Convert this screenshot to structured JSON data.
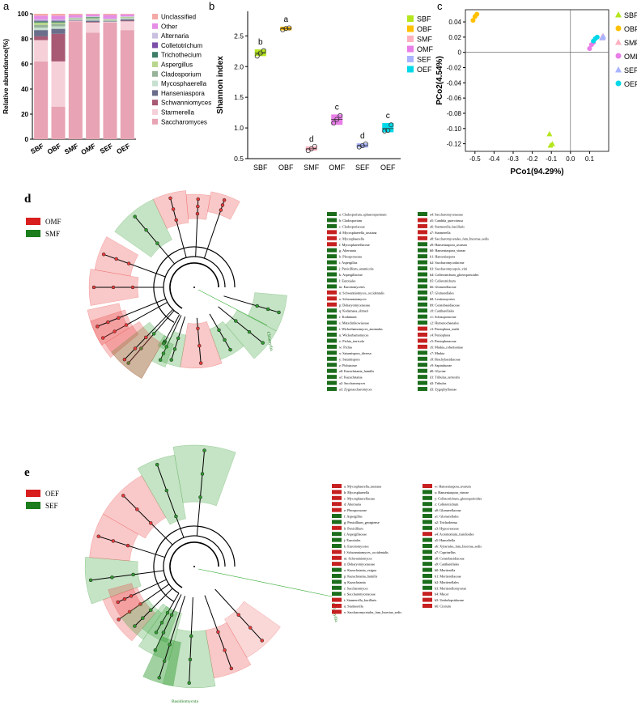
{
  "panels": {
    "a": "a",
    "b": "b",
    "c": "c",
    "d": "d",
    "e": "e"
  },
  "chart_data": [
    {
      "type": "bar",
      "panel": "a",
      "stacked": true,
      "ylabel": "Relative abundance(%)",
      "ylim": [
        0,
        100
      ],
      "yticks": [
        0,
        20,
        40,
        60,
        80,
        100
      ],
      "categories": [
        "SBF",
        "OBF",
        "SMF",
        "OMF",
        "SEF",
        "OEF"
      ],
      "legend_position": "right",
      "series": [
        {
          "name": "Saccharomyces",
          "color": "#e8a4b4",
          "values": [
            62,
            26,
            94,
            85,
            93,
            87
          ]
        },
        {
          "name": "Starmerella",
          "color": "#f6d0d9",
          "values": [
            17,
            36,
            0.5,
            8,
            0.5,
            7
          ]
        },
        {
          "name": "Schwanniomyces",
          "color": "#a85a74",
          "values": [
            3,
            22,
            0,
            0.5,
            0,
            0.5
          ]
        },
        {
          "name": "Hanseniaspora",
          "color": "#6b6e8b",
          "values": [
            5,
            4,
            0.5,
            1,
            0.5,
            1
          ]
        },
        {
          "name": "Mycosphaerella",
          "color": "#c8e0cf",
          "values": [
            2,
            2,
            0.5,
            1,
            0.5,
            1
          ]
        },
        {
          "name": "Cladosporium",
          "color": "#97b399",
          "values": [
            2,
            2,
            0.5,
            1,
            0.5,
            0.5
          ]
        },
        {
          "name": "Aspergillus",
          "color": "#b9d68e",
          "values": [
            2,
            1,
            0.5,
            0.5,
            0.5,
            0.5
          ]
        },
        {
          "name": "Trichothecium",
          "color": "#3e7e67",
          "values": [
            1,
            1,
            0,
            0.5,
            0,
            0
          ]
        },
        {
          "name": "Colletotrichum",
          "color": "#7b4fa7",
          "values": [
            0.5,
            0.5,
            0,
            0,
            0,
            0
          ]
        },
        {
          "name": "Alternaria",
          "color": "#c9c0e0",
          "values": [
            1,
            1,
            0.5,
            0.5,
            0.5,
            0.5
          ]
        },
        {
          "name": "Other",
          "color": "#e58ee6",
          "values": [
            3,
            3,
            2,
            1.5,
            3,
            1.5
          ]
        },
        {
          "name": "Unclassified",
          "color": "#f4aaa6",
          "values": [
            1.5,
            1.5,
            1,
            0.5,
            1,
            0.5
          ]
        }
      ]
    },
    {
      "type": "bar",
      "panel": "b",
      "ylabel": "Shannon index",
      "ylim": [
        0.5,
        2.9
      ],
      "yticks": [
        0.5,
        1.0,
        1.5,
        2.0,
        2.5
      ],
      "categories": [
        "SBF",
        "OBF",
        "SMF",
        "OMF",
        "SEF",
        "OEF"
      ],
      "legend_position": "right",
      "series": [
        {
          "name": "SBF",
          "color": "#b5e61d"
        },
        {
          "name": "OBF",
          "color": "#ffc000"
        },
        {
          "name": "SMF",
          "color": "#ffb0c0"
        },
        {
          "name": "OMF",
          "color": "#e87ee8"
        },
        {
          "name": "SEF",
          "color": "#a8b4ff"
        },
        {
          "name": "OEF",
          "color": "#00d8e8"
        }
      ],
      "groups": [
        {
          "label": "SBF",
          "letter": "b",
          "mean": 2.22,
          "low": 2.17,
          "high": 2.28,
          "points": [
            2.17,
            2.22,
            2.26
          ]
        },
        {
          "label": "OBF",
          "letter": "a",
          "mean": 2.62,
          "low": 2.59,
          "high": 2.65,
          "points": [
            2.6,
            2.62,
            2.63
          ]
        },
        {
          "label": "SMF",
          "letter": "d",
          "mean": 0.66,
          "low": 0.63,
          "high": 0.7,
          "points": [
            0.63,
            0.66,
            0.7
          ]
        },
        {
          "label": "OMF",
          "letter": "c",
          "mean": 1.14,
          "low": 1.05,
          "high": 1.22,
          "points": [
            1.08,
            1.14,
            1.2
          ]
        },
        {
          "label": "SEF",
          "letter": "d",
          "mean": 0.71,
          "low": 0.68,
          "high": 0.75,
          "points": [
            0.69,
            0.71,
            0.74
          ]
        },
        {
          "label": "OEF",
          "letter": "c",
          "mean": 0.99,
          "low": 0.93,
          "high": 1.08,
          "points": [
            0.95,
            0.96,
            1.05
          ]
        }
      ]
    },
    {
      "type": "scatter",
      "panel": "c",
      "xlabel": "PCo1(94.29%)",
      "ylabel": "PCo2(4.54%)",
      "xlim": [
        -0.55,
        0.2
      ],
      "ylim": [
        -0.13,
        0.056
      ],
      "xticks": [
        -0.5,
        -0.4,
        -0.3,
        -0.2,
        -0.1,
        0.0,
        0.1
      ],
      "yticks": [
        -0.12,
        -0.1,
        -0.08,
        -0.06,
        -0.04,
        -0.02,
        0,
        0.02,
        0.04
      ],
      "legend_position": "right",
      "series": [
        {
          "name": "SBF",
          "color": "#b5e61d",
          "marker": "triangle",
          "x": [
            -0.11,
            -0.095,
            -0.105
          ],
          "y": [
            -0.107,
            -0.12,
            -0.122
          ]
        },
        {
          "name": "OBF",
          "color": "#ffc000",
          "marker": "circle",
          "x": [
            -0.51,
            -0.49,
            -0.5
          ],
          "y": [
            0.042,
            0.05,
            0.047
          ]
        },
        {
          "name": "SMF",
          "color": "#ffb0c0",
          "marker": "triangle",
          "x": [
            0.17,
            0.165,
            0.168
          ],
          "y": [
            0.022,
            0.02,
            0.019
          ]
        },
        {
          "name": "OMF",
          "color": "#e87ee8",
          "marker": "circle",
          "x": [
            0.1,
            0.11,
            0.12
          ],
          "y": [
            0.005,
            0.01,
            0.013
          ]
        },
        {
          "name": "SEF",
          "color": "#a8b4ff",
          "marker": "triangle",
          "x": [
            0.165,
            0.17,
            0.172
          ],
          "y": [
            0.019,
            0.02,
            0.021
          ]
        },
        {
          "name": "OEF",
          "color": "#00d8e8",
          "marker": "circle",
          "x": [
            0.12,
            0.13,
            0.14
          ],
          "y": [
            0.015,
            0.018,
            0.02
          ]
        }
      ]
    }
  ],
  "cladogram_d": {
    "legend": [
      {
        "name": "OMF",
        "color": "#d91e1e"
      },
      {
        "name": "SMF",
        "color": "#1b7d1b"
      }
    ],
    "center_label": "Chlamydia",
    "key_col1": [
      {
        "c": "g",
        "t": "a: Cladosporium_sphaerospermum"
      },
      {
        "c": "g",
        "t": "b: Cladosporium"
      },
      {
        "c": "g",
        "t": "c: Cladosporiaceae"
      },
      {
        "c": "r",
        "t": "d: Mycosphaerella_tassiana"
      },
      {
        "c": "r",
        "t": "e: Mycosphaerella"
      },
      {
        "c": "r",
        "t": "f: Mycosphaerellaceae"
      },
      {
        "c": "g",
        "t": "g: Alternaria"
      },
      {
        "c": "g",
        "t": "h: Pleosporaceae"
      },
      {
        "c": "g",
        "t": "i: Aspergillus"
      },
      {
        "c": "g",
        "t": "j: Penicillium_atramicola"
      },
      {
        "c": "g",
        "t": "k: Aspergillaceae"
      },
      {
        "c": "g",
        "t": "l: Eurotiales"
      },
      {
        "c": "g",
        "t": "m: Eurotiomycetes"
      },
      {
        "c": "r",
        "t": "n: Schwanniomyces_occidentalis"
      },
      {
        "c": "r",
        "t": "o: Schwanniomyces"
      },
      {
        "c": "r",
        "t": "p: Debaryomycetaceae"
      },
      {
        "c": "g",
        "t": "q: Kodamaea_ohmeri"
      },
      {
        "c": "g",
        "t": "r: Kodamaea"
      },
      {
        "c": "g",
        "t": "s: Metschnikowiaceae"
      },
      {
        "c": "g",
        "t": "t: Wickerhamomyces_anomalus"
      },
      {
        "c": "g",
        "t": "u: Wickerhamomyces"
      },
      {
        "c": "g",
        "t": "v: Pichia_terricola"
      },
      {
        "c": "g",
        "t": "w: Pichia"
      },
      {
        "c": "g",
        "t": "x: Saturnispora_diversa"
      },
      {
        "c": "g",
        "t": "y: Saturnispora"
      },
      {
        "c": "g",
        "t": "z: Pichiaceae"
      },
      {
        "c": "g",
        "t": "a0: Kazachstania_humilis"
      },
      {
        "c": "g",
        "t": "a1: Kazachstania"
      },
      {
        "c": "g",
        "t": "a2: Saccharomyces"
      },
      {
        "c": "g",
        "t": "a3: Zygosaccharomyces"
      }
    ],
    "key_col2": [
      {
        "c": "g",
        "t": "a4: Saccharomycetaceae"
      },
      {
        "c": "r",
        "t": "a5: Candida_quercitrusa"
      },
      {
        "c": "r",
        "t": "a6: Starmerella_bacillaris"
      },
      {
        "c": "r",
        "t": "a7: Starmerella"
      },
      {
        "c": "r",
        "t": "a8: Saccharomycetales_fam_Incertae_sedis"
      },
      {
        "c": "g",
        "t": "a9: Hanseniaspora_uvarum"
      },
      {
        "c": "g",
        "t": "b0: Hanseniaspora_vineae"
      },
      {
        "c": "g",
        "t": "b1: Hanseniaspora"
      },
      {
        "c": "g",
        "t": "b2: Saccharomycodaceae"
      },
      {
        "c": "g",
        "t": "b3: Saccharomycopsis_vini"
      },
      {
        "c": "g",
        "t": "b4: Colletotrichum_gloeosporioides"
      },
      {
        "c": "g",
        "t": "b5: Colletotrichum"
      },
      {
        "c": "g",
        "t": "b6: Glomerellaceae"
      },
      {
        "c": "g",
        "t": "b7: Glomerellales"
      },
      {
        "c": "g",
        "t": "b8: Leotiomycetes"
      },
      {
        "c": "g",
        "t": "b9: Ceratobasidiaceae"
      },
      {
        "c": "g",
        "t": "c0: Cantharellales"
      },
      {
        "c": "g",
        "t": "c1: Schizoporaceae"
      },
      {
        "c": "g",
        "t": "c2: Hymenochaetales"
      },
      {
        "c": "r",
        "t": "c3: Peniophora_malii"
      },
      {
        "c": "r",
        "t": "c4: Peniophora"
      },
      {
        "c": "r",
        "t": "c5: Peniophoraceae"
      },
      {
        "c": "r",
        "t": "c6: Mrakia_robertsoniae"
      },
      {
        "c": "g",
        "t": "c7: Mrakia"
      },
      {
        "c": "g",
        "t": "c8: Brachybasidiaceae"
      },
      {
        "c": "g",
        "t": "c9: Sapindaceae"
      },
      {
        "c": "g",
        "t": "d0: Glycine"
      },
      {
        "c": "g",
        "t": "d1: Tribulus_terrestris"
      },
      {
        "c": "g",
        "t": "d2: Tribulus"
      },
      {
        "c": "g",
        "t": "d3: Zygophyllaceae"
      }
    ]
  },
  "cladogram_e": {
    "legend": [
      {
        "name": "OEF",
        "color": "#d91e1e"
      },
      {
        "name": "SEF",
        "color": "#1b7d1b"
      }
    ],
    "center_label": "Chlamydia",
    "bottom_label": "Basidiomycota",
    "key_col1": [
      {
        "c": "r",
        "t": "a: Mycosphaerella_tassiana"
      },
      {
        "c": "r",
        "t": "b: Mycosphaerella"
      },
      {
        "c": "r",
        "t": "c: Mycosphaerellaceae"
      },
      {
        "c": "r",
        "t": "d: Alternaria"
      },
      {
        "c": "r",
        "t": "e: Pleosporaceae"
      },
      {
        "c": "g",
        "t": "f: Aspergillus"
      },
      {
        "c": "g",
        "t": "g: Penicillium_georgiense"
      },
      {
        "c": "r",
        "t": "h: Penicillium"
      },
      {
        "c": "g",
        "t": "i: Aspergillaceae"
      },
      {
        "c": "g",
        "t": "j: Eurotiales"
      },
      {
        "c": "g",
        "t": "k: Eurotiomycetes"
      },
      {
        "c": "r",
        "t": "l: Schwanniomyces_occidentalis"
      },
      {
        "c": "r",
        "t": "m: Schwanniomyces"
      },
      {
        "c": "r",
        "t": "n: Debaryomycetaceae"
      },
      {
        "c": "g",
        "t": "o: Kazachstania_exigua"
      },
      {
        "c": "g",
        "t": "p: Kazachstania_humilis"
      },
      {
        "c": "g",
        "t": "q: Kazachstania"
      },
      {
        "c": "g",
        "t": "r: Saccharomyces"
      },
      {
        "c": "g",
        "t": "s: Saccharomycetaceae"
      },
      {
        "c": "r",
        "t": "t: Starmerella_bacillaris"
      },
      {
        "c": "r",
        "t": "u: Starmerella"
      },
      {
        "c": "r",
        "t": "v: Saccharomycetales_fam_Incertae_sedis"
      }
    ],
    "key_col2": [
      {
        "c": "r",
        "t": "w: Hanseniaspora_uvarum"
      },
      {
        "c": "g",
        "t": "x: Hanseniaspora_vineae"
      },
      {
        "c": "g",
        "t": "y: Colletotrichum_gloeosporioides"
      },
      {
        "c": "g",
        "t": "z: Colletotrichum"
      },
      {
        "c": "g",
        "t": "a0: Glomerellaceae"
      },
      {
        "c": "g",
        "t": "a1: Glomerellales"
      },
      {
        "c": "g",
        "t": "a2: Trichoderma"
      },
      {
        "c": "g",
        "t": "a3: Hypocreaceae"
      },
      {
        "c": "r",
        "t": "a4: Acremonium_fusidioides"
      },
      {
        "c": "g",
        "t": "a5: Hanseliella"
      },
      {
        "c": "g",
        "t": "a6: Xylariales_fam_Incertae_sedis"
      },
      {
        "c": "g",
        "t": "a7: Coprinellus"
      },
      {
        "c": "g",
        "t": "a8: Ceratobasidiaceae"
      },
      {
        "c": "g",
        "t": "a9: Cantharellales"
      },
      {
        "c": "g",
        "t": "b0: Mortierella"
      },
      {
        "c": "g",
        "t": "b1: Mortierellaceae"
      },
      {
        "c": "g",
        "t": "b2: Mortierellales"
      },
      {
        "c": "g",
        "t": "b3: Mortierellomycetes"
      },
      {
        "c": "r",
        "t": "b4: Mucor"
      },
      {
        "c": "r",
        "t": "b5: Umbelopsidaceae"
      },
      {
        "c": "r",
        "t": "b6: Cirsium"
      }
    ]
  }
}
